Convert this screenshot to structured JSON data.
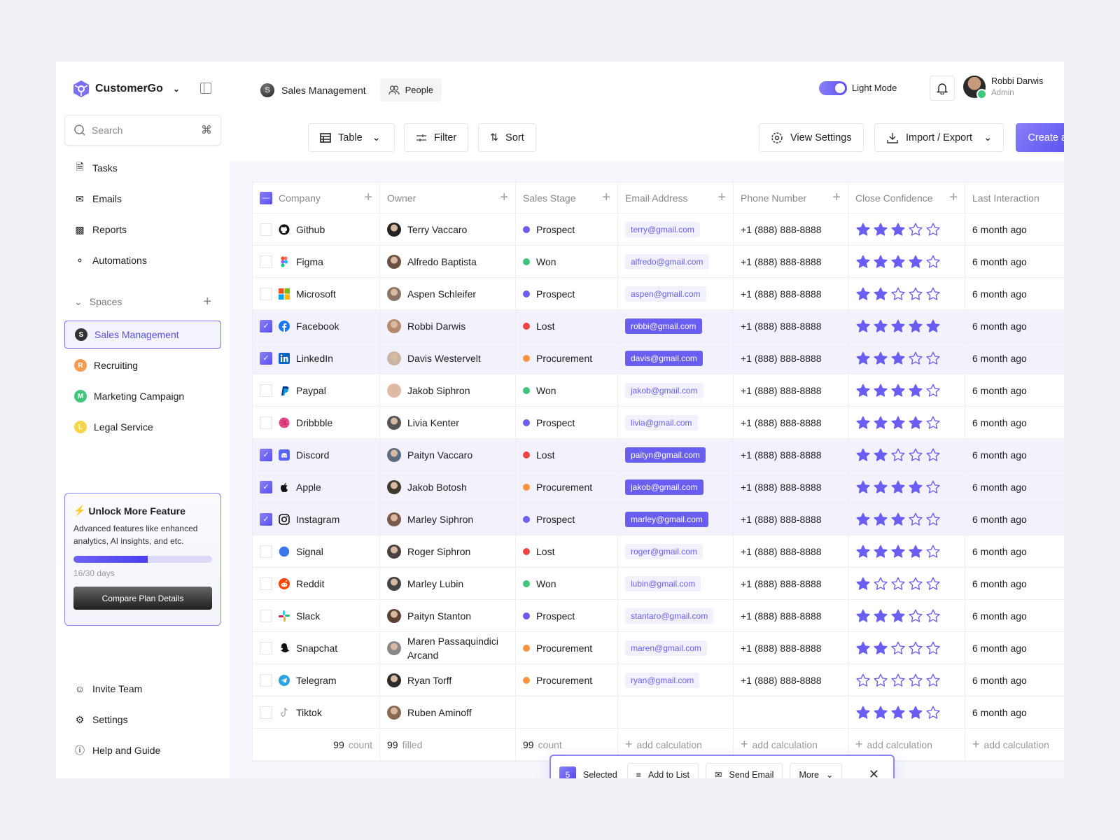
{
  "brand": {
    "name": "CustomerGo",
    "accent": "#5b4fe6"
  },
  "search": {
    "placeholder": "Search",
    "shortcut": "⌘"
  },
  "nav": [
    {
      "label": "Tasks",
      "icon": "file-icon"
    },
    {
      "label": "Emails",
      "icon": "mail-icon"
    },
    {
      "label": "Reports",
      "icon": "bar-chart-icon"
    },
    {
      "label": "Automations",
      "icon": "flow-icon"
    }
  ],
  "spaces": {
    "label": "Spaces",
    "items": [
      {
        "label": "Sales Management",
        "letter": "S",
        "color": "#333333",
        "active": true
      },
      {
        "label": "Recruiting",
        "letter": "R",
        "color": "#f59a4c"
      },
      {
        "label": "Marketing Campaign",
        "letter": "M",
        "color": "#3fc67a"
      },
      {
        "label": "Legal Service",
        "letter": "L",
        "color": "#f7d54a"
      }
    ]
  },
  "promo": {
    "title": "Unlock More Feature",
    "text": "Advanced features like enhanced analytics, AI insights, and etc.",
    "progress": 0.533,
    "days": "16/30 days",
    "button": "Compare Plan Details"
  },
  "bottom_nav": [
    {
      "label": "Invite Team",
      "icon": "user-plus-icon"
    },
    {
      "label": "Settings",
      "icon": "gear-icon"
    },
    {
      "label": "Help and Guide",
      "icon": "help-icon"
    }
  ],
  "header": {
    "space": "Sales Management",
    "space_letter": "S",
    "tab": "People",
    "mode_label": "Light Mode",
    "user_name": "Robbi Darwis",
    "user_role": "Admin"
  },
  "toolbar": {
    "view": "Table",
    "filter": "Filter",
    "sort": "Sort",
    "view_settings": "View Settings",
    "import_export": "Import / Export",
    "create": "Create a List"
  },
  "table": {
    "columns": [
      "Company",
      "Owner",
      "Sales Stage",
      "Email Address",
      "Phone Number",
      "Close Confidence",
      "Last Interaction"
    ],
    "stage_colors": {
      "Prospect": "#6a5ff0",
      "Won": "#3fc67a",
      "Lost": "#f04444",
      "Procurement": "#f7953e"
    },
    "rows": [
      {
        "company": "Github",
        "owner": "Terry Vaccaro",
        "stage": "Prospect",
        "email": "terry@gmail.com",
        "phone": "+1 (888) 888-8888",
        "rating": 3,
        "last": "6 month ago",
        "selected": false
      },
      {
        "company": "Figma",
        "owner": "Alfredo Baptista",
        "stage": "Won",
        "email": "alfredo@gmail.com",
        "phone": "+1 (888) 888-8888",
        "rating": 4,
        "last": "6 month ago",
        "selected": false
      },
      {
        "company": "Microsoft",
        "owner": "Aspen Schleifer",
        "stage": "Prospect",
        "email": "aspen@gmail.com",
        "phone": "+1 (888) 888-8888",
        "rating": 2,
        "last": "6 month ago",
        "selected": false
      },
      {
        "company": "Facebook",
        "owner": "Robbi Darwis",
        "stage": "Lost",
        "email": "robbi@gmail.com",
        "phone": "+1 (888) 888-8888",
        "rating": 5,
        "last": "6 month ago",
        "selected": true
      },
      {
        "company": "LinkedIn",
        "owner": "Davis Westervelt",
        "stage": "Procurement",
        "email": "davis@gmail.com",
        "phone": "+1 (888) 888-8888",
        "rating": 3,
        "last": "6 month ago",
        "selected": true
      },
      {
        "company": "Paypal",
        "owner": "Jakob Siphron",
        "stage": "Won",
        "email": "jakob@gmail.com",
        "phone": "+1 (888) 888-8888",
        "rating": 4,
        "last": "6 month ago",
        "selected": false
      },
      {
        "company": "Dribbble",
        "owner": "Livia Kenter",
        "stage": "Prospect",
        "email": "livia@gmail.com",
        "phone": "+1 (888) 888-8888",
        "rating": 4,
        "last": "6 month ago",
        "selected": false
      },
      {
        "company": "Discord",
        "owner": "Paityn Vaccaro",
        "stage": "Lost",
        "email": "paityn@gmail.com",
        "phone": "+1 (888) 888-8888",
        "rating": 2,
        "last": "6 month ago",
        "selected": true
      },
      {
        "company": "Apple",
        "owner": "Jakob Botosh",
        "stage": "Procurement",
        "email": "jakob@gmail.com",
        "phone": "+1 (888) 888-8888",
        "rating": 4,
        "last": "6 month ago",
        "selected": true
      },
      {
        "company": "Instagram",
        "owner": "Marley Siphron",
        "stage": "Prospect",
        "email": "marley@gmail.com",
        "phone": "+1 (888) 888-8888",
        "rating": 3,
        "last": "6 month ago",
        "selected": true
      },
      {
        "company": "Signal",
        "owner": "Roger Siphron",
        "stage": "Lost",
        "email": "roger@gmail.com",
        "phone": "+1 (888) 888-8888",
        "rating": 4,
        "last": "6 month ago",
        "selected": false
      },
      {
        "company": "Reddit",
        "owner": "Marley Lubin",
        "stage": "Won",
        "email": "lubin@gmail.com",
        "phone": "+1 (888) 888-8888",
        "rating": 1,
        "last": "6 month ago",
        "selected": false
      },
      {
        "company": "Slack",
        "owner": "Paityn Stanton",
        "stage": "Prospect",
        "email": "stantaro@gmail.com",
        "phone": "+1 (888) 888-8888",
        "rating": 3,
        "last": "6 month ago",
        "selected": false
      },
      {
        "company": "Snapchat",
        "owner": "Maren Passaquindici Arcand",
        "stage": "Procurement",
        "email": "maren@gmail.com",
        "phone": "+1 (888) 888-8888",
        "rating": 2,
        "last": "6 month ago",
        "selected": false
      },
      {
        "company": "Telegram",
        "owner": "Ryan Torff",
        "stage": "Procurement",
        "email": "ryan@gmail.com",
        "phone": "+1 (888) 888-8888",
        "rating": 0,
        "last": "6 month ago",
        "selected": false
      },
      {
        "company": "Tiktok",
        "owner": "Ruben Aminoff",
        "stage": "",
        "email": "",
        "phone": "",
        "rating": 4,
        "last": "6 month ago",
        "selected": false
      }
    ],
    "footer": [
      {
        "num": "99",
        "label": "count"
      },
      {
        "num": "99",
        "label": "filled"
      },
      {
        "num": "99",
        "label": "count"
      },
      {
        "num": "",
        "label": "add calculation"
      },
      {
        "num": "",
        "label": "add calculation"
      },
      {
        "num": "",
        "label": "add calculation"
      },
      {
        "num": "",
        "label": "add calculation"
      }
    ]
  },
  "selection": {
    "count": "5",
    "label": "Selected",
    "add": "Add to List",
    "email": "Send Email",
    "more": "More"
  }
}
